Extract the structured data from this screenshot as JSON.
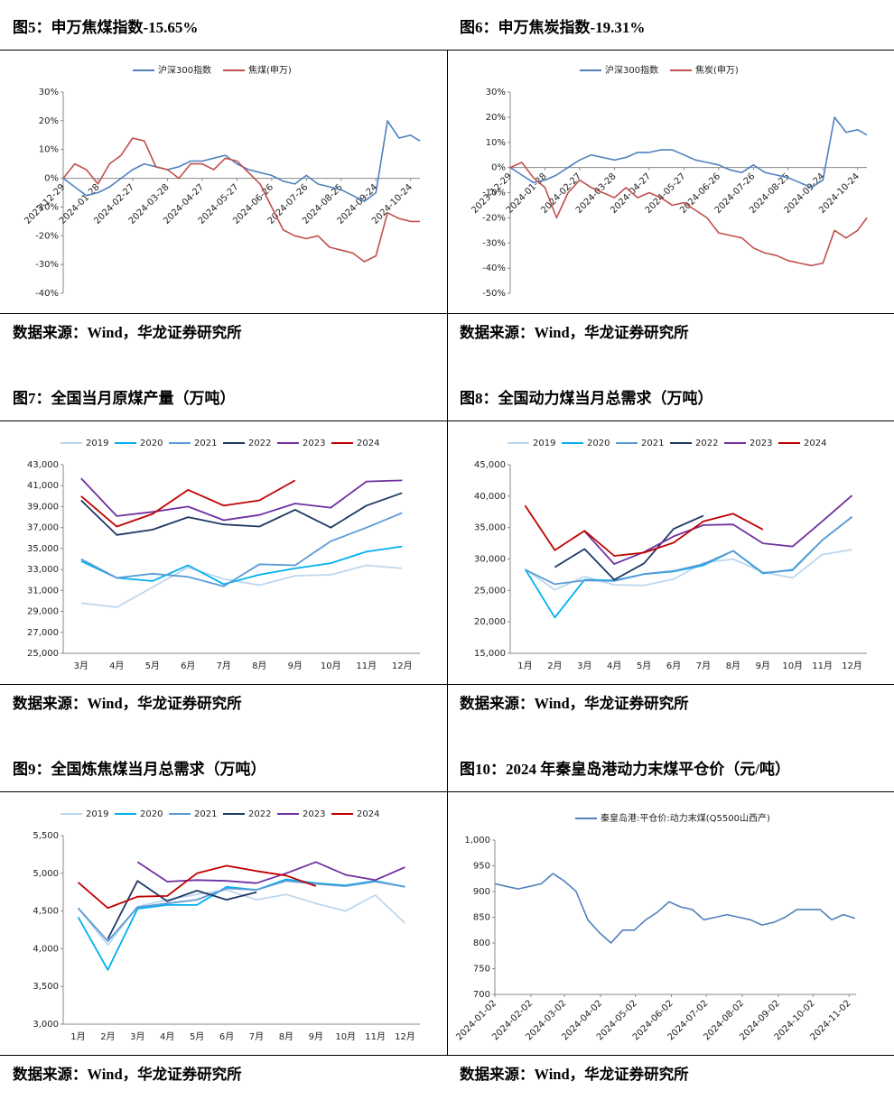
{
  "chart_data": [
    {
      "type": "line",
      "title": "图5：申万焦煤指数-15.65%",
      "source": "数据来源：Wind，华龙证券研究所",
      "x": [
        "2023-12-29",
        "2024-01-08",
        "2024-01-18",
        "2024-01-28",
        "2024-02-07",
        "2024-02-17",
        "2024-02-27",
        "2024-03-08",
        "2024-03-18",
        "2024-03-28",
        "2024-04-07",
        "2024-04-17",
        "2024-04-27",
        "2024-05-07",
        "2024-05-17",
        "2024-05-27",
        "2024-06-06",
        "2024-06-16",
        "2024-06-26",
        "2024-07-06",
        "2024-07-16",
        "2024-07-26",
        "2024-08-05",
        "2024-08-15",
        "2024-08-25",
        "2024-09-04",
        "2024-09-14",
        "2024-09-24",
        "2024-10-04",
        "2024-10-14",
        "2024-10-24",
        "2024-11-01"
      ],
      "xlim": [
        "2023-12-29",
        "2024-11-01"
      ],
      "xticks": [
        "2023-12-29",
        "2024-01-28",
        "2024-02-27",
        "2024-03-28",
        "2024-04-27",
        "2024-05-27",
        "2024-06-26",
        "2024-07-26",
        "2024-08-25",
        "2024-09-24",
        "2024-10-24"
      ],
      "ylim": [
        -40,
        30
      ],
      "yticks": [
        {
          "value": -40,
          "label": "-40%"
        },
        {
          "value": -30,
          "label": "-30%"
        },
        {
          "value": -20,
          "label": "-20%"
        },
        {
          "value": -10,
          "label": "-10%"
        },
        {
          "value": 0,
          "label": "0%"
        },
        {
          "value": 10,
          "label": "10%"
        },
        {
          "value": 20,
          "label": "20%"
        },
        {
          "value": 30,
          "label": "30%"
        }
      ],
      "grid": false,
      "series": [
        {
          "name": "沪深300指数",
          "color": "#4f81bd",
          "values": [
            0,
            -3,
            -6,
            -5,
            -3,
            0,
            3,
            5,
            4,
            3,
            4,
            6,
            6,
            7,
            8,
            5,
            3,
            2,
            1,
            -1,
            -2,
            1,
            -2,
            -3,
            -4,
            -6,
            -8,
            -5,
            20,
            14,
            15,
            13
          ]
        },
        {
          "name": "焦煤(申万)",
          "color": "#c0504d",
          "values": [
            0,
            5,
            3,
            -2,
            5,
            8,
            14,
            13,
            4,
            3,
            0,
            5,
            5,
            3,
            7,
            6,
            2,
            -2,
            -10,
            -18,
            -20,
            -21,
            -20,
            -24,
            -25,
            -26,
            -29,
            -27,
            -12,
            -14,
            -15,
            -15
          ]
        }
      ]
    },
    {
      "type": "line",
      "title": "图6：申万焦炭指数-19.31%",
      "source": "数据来源：Wind，华龙证券研究所",
      "x": [
        "2023-12-29",
        "2024-01-08",
        "2024-01-18",
        "2024-01-28",
        "2024-02-07",
        "2024-02-17",
        "2024-02-27",
        "2024-03-08",
        "2024-03-18",
        "2024-03-28",
        "2024-04-07",
        "2024-04-17",
        "2024-04-27",
        "2024-05-07",
        "2024-05-17",
        "2024-05-27",
        "2024-06-06",
        "2024-06-16",
        "2024-06-26",
        "2024-07-06",
        "2024-07-16",
        "2024-07-26",
        "2024-08-05",
        "2024-08-15",
        "2024-08-25",
        "2024-09-04",
        "2024-09-14",
        "2024-09-24",
        "2024-10-04",
        "2024-10-14",
        "2024-10-24",
        "2024-11-01"
      ],
      "xlim": [
        "2023-12-29",
        "2024-11-01"
      ],
      "xticks": [
        "2023-12-29",
        "2024-01-28",
        "2024-02-27",
        "2024-03-28",
        "2024-04-27",
        "2024-05-27",
        "2024-06-26",
        "2024-07-26",
        "2024-08-25",
        "2024-09-24",
        "2024-10-24"
      ],
      "ylim": [
        -50,
        30
      ],
      "yticks": [
        {
          "value": -50,
          "label": "-50%"
        },
        {
          "value": -40,
          "label": "-40%"
        },
        {
          "value": -30,
          "label": "-30%"
        },
        {
          "value": -20,
          "label": "-20%"
        },
        {
          "value": -10,
          "label": "-10%"
        },
        {
          "value": 0,
          "label": "0%"
        },
        {
          "value": 10,
          "label": "10%"
        },
        {
          "value": 20,
          "label": "20%"
        },
        {
          "value": 30,
          "label": "30%"
        }
      ],
      "grid": false,
      "series": [
        {
          "name": "沪深300指数",
          "color": "#4f81bd",
          "values": [
            0,
            -3,
            -6,
            -5,
            -3,
            0,
            3,
            5,
            4,
            3,
            4,
            6,
            6,
            7,
            7,
            5,
            3,
            2,
            1,
            -1,
            -2,
            1,
            -2,
            -3,
            -4,
            -6,
            -8,
            -5,
            20,
            14,
            15,
            13
          ]
        },
        {
          "name": "焦炭(申万)",
          "color": "#c0504d",
          "values": [
            0,
            2,
            -4,
            -8,
            -20,
            -10,
            -5,
            -8,
            -10,
            -12,
            -8,
            -12,
            -10,
            -12,
            -15,
            -14,
            -17,
            -20,
            -26,
            -27,
            -28,
            -32,
            -34,
            -35,
            -37,
            -38,
            -39,
            -38,
            -25,
            -28,
            -25,
            -20
          ]
        }
      ]
    },
    {
      "type": "category-line",
      "title": "图7：全国当月原煤产量（万吨）",
      "source": "数据来源：Wind，华龙证券研究所",
      "categories": [
        "3月",
        "4月",
        "5月",
        "6月",
        "7月",
        "8月",
        "9月",
        "10月",
        "11月",
        "12月"
      ],
      "ylim": [
        25000,
        43000
      ],
      "yticks": [
        {
          "value": 25000,
          "label": "25,000"
        },
        {
          "value": 27000,
          "label": "27,000"
        },
        {
          "value": 29000,
          "label": "29,000"
        },
        {
          "value": 31000,
          "label": "31,000"
        },
        {
          "value": 33000,
          "label": "33,000"
        },
        {
          "value": 35000,
          "label": "35,000"
        },
        {
          "value": 37000,
          "label": "37,000"
        },
        {
          "value": 39000,
          "label": "39,000"
        },
        {
          "value": 41000,
          "label": "41,000"
        },
        {
          "value": 43000,
          "label": "43,000"
        }
      ],
      "grid": false,
      "series": [
        {
          "name": "2019",
          "color": "#bdd7ee",
          "values": [
            29800,
            29400,
            31300,
            33200,
            32100,
            31500,
            32400,
            32500,
            33400,
            33100
          ]
        },
        {
          "name": "2020",
          "color": "#00b0f0",
          "values": [
            33800,
            32200,
            31900,
            33400,
            31600,
            32500,
            33100,
            33600,
            34700,
            35200
          ]
        },
        {
          "name": "2021",
          "color": "#5b9bd5",
          "values": [
            34000,
            32200,
            32600,
            32300,
            31400,
            33500,
            33400,
            35700,
            37000,
            38400
          ]
        },
        {
          "name": "2022",
          "color": "#1f3864",
          "values": [
            39600,
            36300,
            36800,
            38000,
            37300,
            37100,
            38700,
            37000,
            39100,
            40300
          ]
        },
        {
          "name": "2023",
          "color": "#7030a0",
          "values": [
            41700,
            38100,
            38500,
            39000,
            37700,
            38200,
            39300,
            38900,
            41400,
            41500
          ]
        },
        {
          "name": "2024",
          "color": "#c00000",
          "values": [
            40000,
            37100,
            38300,
            40600,
            39100,
            39600,
            41500,
            null,
            null,
            null
          ]
        }
      ]
    },
    {
      "type": "category-line",
      "title": "图8：全国动力煤当月总需求（万吨）",
      "source": "数据来源：Wind，华龙证券研究所",
      "categories": [
        "1月",
        "2月",
        "3月",
        "4月",
        "5月",
        "6月",
        "7月",
        "8月",
        "9月",
        "10月",
        "11月",
        "12月"
      ],
      "ylim": [
        15000,
        45000
      ],
      "yticks": [
        {
          "value": 15000,
          "label": "15,000"
        },
        {
          "value": 20000,
          "label": "20,000"
        },
        {
          "value": 25000,
          "label": "25,000"
        },
        {
          "value": 30000,
          "label": "30,000"
        },
        {
          "value": 35000,
          "label": "35,000"
        },
        {
          "value": 40000,
          "label": "40,000"
        },
        {
          "value": 45000,
          "label": "45,000"
        }
      ],
      "grid": false,
      "series": [
        {
          "name": "2019",
          "color": "#bdd7ee",
          "values": [
            28400,
            25100,
            27200,
            25900,
            25800,
            26800,
            29400,
            30000,
            27900,
            27000,
            30700,
            31500
          ]
        },
        {
          "name": "2020",
          "color": "#00b0f0",
          "values": [
            28400,
            20700,
            26700,
            26600,
            27600,
            28000,
            29000,
            31300,
            27700,
            28300,
            33000,
            36700
          ]
        },
        {
          "name": "2021",
          "color": "#5b9bd5",
          "values": [
            28300,
            26000,
            26600,
            26500,
            27600,
            28100,
            29200,
            31300,
            27800,
            28200,
            33000,
            36700
          ]
        },
        {
          "name": "2022",
          "color": "#1f3864",
          "values": [
            null,
            28700,
            31600,
            26700,
            29300,
            34800,
            36900,
            null,
            null,
            null,
            null,
            null
          ]
        },
        {
          "name": "2023",
          "color": "#7030a0",
          "values": [
            null,
            null,
            34400,
            29200,
            31100,
            33600,
            35400,
            35500,
            32500,
            32000,
            36000,
            40100
          ]
        },
        {
          "name": "2024",
          "color": "#c00000",
          "values": [
            38500,
            31400,
            34500,
            30500,
            31000,
            32600,
            36000,
            37200,
            34700,
            null,
            null,
            null
          ]
        }
      ]
    },
    {
      "type": "category-line",
      "title": "图9：全国炼焦煤当月总需求（万吨）",
      "source": "数据来源：Wind，华龙证券研究所",
      "categories": [
        "1月",
        "2月",
        "3月",
        "4月",
        "5月",
        "6月",
        "7月",
        "8月",
        "9月",
        "10月",
        "11月",
        "12月"
      ],
      "ylim": [
        3000,
        5500
      ],
      "yticks": [
        {
          "value": 3000,
          "label": "3,000"
        },
        {
          "value": 3500,
          "label": "3,500"
        },
        {
          "value": 4000,
          "label": "4,000"
        },
        {
          "value": 4500,
          "label": "4,500"
        },
        {
          "value": 5000,
          "label": "5,000"
        },
        {
          "value": 5500,
          "label": "5,500"
        }
      ],
      "grid": false,
      "series": [
        {
          "name": "2019",
          "color": "#bdd7ee",
          "values": [
            4540,
            4050,
            4560,
            4650,
            4720,
            4780,
            4650,
            4720,
            4600,
            4500,
            4710,
            4340
          ]
        },
        {
          "name": "2020",
          "color": "#00b0f0",
          "values": [
            4420,
            3720,
            4530,
            4580,
            4580,
            4820,
            4780,
            4920,
            4870,
            4840,
            4900,
            4820
          ]
        },
        {
          "name": "2021",
          "color": "#5b9bd5",
          "values": [
            4540,
            4100,
            4550,
            4600,
            4650,
            4800,
            4780,
            4900,
            4860,
            4830,
            4890,
            4820
          ]
        },
        {
          "name": "2022",
          "color": "#1f3864",
          "values": [
            null,
            4130,
            4900,
            4630,
            4770,
            4650,
            4750,
            null,
            null,
            null,
            null,
            null
          ]
        },
        {
          "name": "2023",
          "color": "#7030a0",
          "values": [
            null,
            null,
            5150,
            4890,
            4910,
            4900,
            4870,
            5000,
            5150,
            4980,
            4910,
            5080
          ]
        },
        {
          "name": "2024",
          "color": "#c00000",
          "values": [
            4880,
            4540,
            4690,
            4700,
            5000,
            5100,
            5030,
            4970,
            4830,
            null,
            null,
            null
          ]
        }
      ]
    },
    {
      "type": "line",
      "title": "图10：2024 年秦皇岛港动力末煤平仓价（元/吨）",
      "source": "数据来源：Wind，华龙证券研究所",
      "x": [
        "2024-01-02",
        "2024-01-12",
        "2024-01-22",
        "2024-02-01",
        "2024-02-11",
        "2024-02-21",
        "2024-03-02",
        "2024-03-12",
        "2024-03-22",
        "2024-04-01",
        "2024-04-11",
        "2024-04-21",
        "2024-05-01",
        "2024-05-11",
        "2024-05-21",
        "2024-05-31",
        "2024-06-10",
        "2024-06-20",
        "2024-06-30",
        "2024-07-10",
        "2024-07-20",
        "2024-07-30",
        "2024-08-09",
        "2024-08-19",
        "2024-08-29",
        "2024-09-08",
        "2024-09-18",
        "2024-09-28",
        "2024-10-08",
        "2024-10-18",
        "2024-10-28",
        "2024-11-07"
      ],
      "xlim": [
        "2024-01-02",
        "2024-11-08"
      ],
      "xticks": [
        "2024-01-02",
        "2024-02-02",
        "2024-03-02",
        "2024-04-02",
        "2024-05-02",
        "2024-06-02",
        "2024-07-02",
        "2024-08-02",
        "2024-09-02",
        "2024-10-02",
        "2024-11-02"
      ],
      "ylim": [
        700,
        1000
      ],
      "yticks": [
        700,
        750,
        800,
        850,
        900,
        950,
        {
          "value": 1000,
          "label": "1,000"
        }
      ],
      "grid": false,
      "series": [
        {
          "name": "秦皇岛港:平仓价:动力末煤(Q5500山西产)",
          "color": "#4f81bd",
          "values": [
            915,
            910,
            905,
            910,
            915,
            935,
            920,
            900,
            845,
            820,
            800,
            825,
            825,
            845,
            860,
            880,
            870,
            865,
            845,
            850,
            855,
            850,
            845,
            835,
            840,
            850,
            865,
            865,
            865,
            845,
            855,
            848
          ]
        }
      ]
    }
  ]
}
